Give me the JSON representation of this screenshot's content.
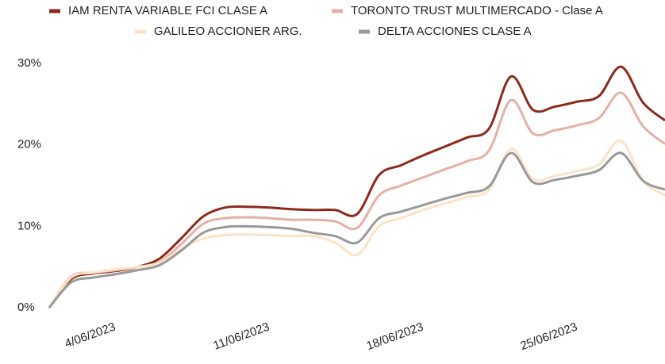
{
  "chart_data": {
    "type": "line",
    "x": [
      "1/06/2023",
      "2/06/2023",
      "3/06/2023",
      "4/06/2023",
      "5/06/2023",
      "6/06/2023",
      "7/06/2023",
      "8/06/2023",
      "9/06/2023",
      "10/06/2023",
      "11/06/2023",
      "12/06/2023",
      "13/06/2023",
      "14/06/2023",
      "15/06/2023",
      "16/06/2023",
      "17/06/2023",
      "18/06/2023",
      "19/06/2023",
      "20/06/2023",
      "21/06/2023",
      "22/06/2023",
      "23/06/2023",
      "24/06/2023",
      "25/06/2023",
      "26/06/2023",
      "27/06/2023",
      "28/06/2023",
      "29/06/2023"
    ],
    "series": [
      {
        "name": "IAM RENTA VARIABLE FCI CLASE A",
        "color": "#8b2a1e",
        "values": [
          0,
          3.5,
          4.2,
          4.5,
          5.0,
          6.0,
          8.5,
          11.2,
          12.3,
          12.4,
          12.3,
          12.1,
          12.0,
          12.0,
          11.5,
          16.3,
          17.5,
          18.7,
          19.8,
          20.9,
          22.0,
          28.4,
          24.3,
          24.7,
          25.3,
          26.0,
          29.6,
          25.2,
          23.0
        ]
      },
      {
        "name": "TORONTO TRUST MULTIMERCADO - Clase A",
        "color": "#e3b0a6",
        "values": [
          0,
          3.8,
          4.3,
          4.6,
          5.0,
          5.6,
          7.8,
          10.3,
          11.0,
          11.1,
          11.0,
          10.8,
          10.8,
          10.6,
          9.8,
          13.8,
          15.0,
          16.0,
          17.0,
          18.0,
          19.3,
          25.5,
          21.4,
          21.8,
          22.4,
          23.3,
          26.4,
          22.3,
          20.1
        ]
      },
      {
        "name": "GALILEO ACCIONER ARG.",
        "color": "#fbe3c8",
        "values": [
          0,
          3.7,
          4.3,
          4.7,
          5.0,
          5.5,
          7.2,
          8.5,
          8.9,
          9.0,
          8.9,
          8.8,
          8.8,
          8.0,
          6.5,
          10.0,
          11.0,
          12.0,
          12.8,
          13.6,
          14.5,
          19.5,
          15.8,
          16.2,
          16.8,
          17.6,
          20.5,
          15.6,
          13.8
        ]
      },
      {
        "name": "DELTA ACCIONES CLASE A",
        "color": "#999999",
        "values": [
          0,
          3.1,
          3.7,
          4.1,
          4.6,
          5.2,
          7.0,
          9.2,
          9.9,
          10.0,
          9.9,
          9.7,
          9.2,
          8.8,
          8.0,
          11.0,
          11.8,
          12.6,
          13.4,
          14.1,
          14.9,
          19.0,
          15.4,
          15.7,
          16.2,
          16.9,
          19.0,
          15.6,
          14.5
        ]
      }
    ],
    "xlim": [
      "1/06/2023",
      "29/06/2023"
    ],
    "xticks": [
      "4/06/2023",
      "11/06/2023",
      "18/06/2023",
      "25/06/2023"
    ],
    "ylim": [
      0,
      30
    ],
    "yticks": [
      {
        "value": 0,
        "label": "0%"
      },
      {
        "value": 10,
        "label": "10%"
      },
      {
        "value": 20,
        "label": "20%"
      },
      {
        "value": 30,
        "label": "30%"
      }
    ],
    "grid": false,
    "legend": "top"
  }
}
